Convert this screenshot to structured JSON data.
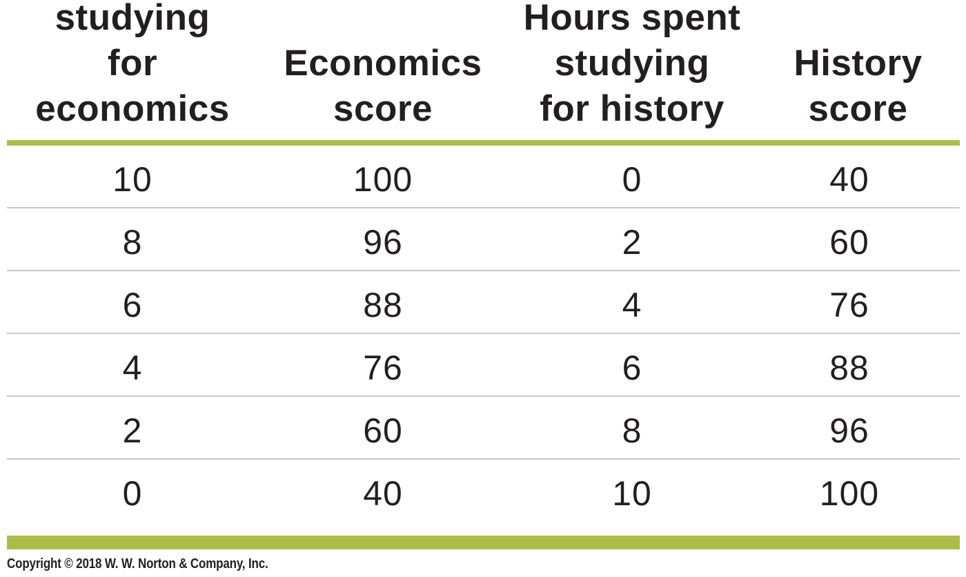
{
  "table": {
    "headers": [
      "Hours spent\nstudying\nfor economics",
      "Economics\nscore",
      "Hours spent\nstudying\nfor history",
      "History\nscore"
    ],
    "rows": [
      [
        "10",
        "100",
        "0",
        "40"
      ],
      [
        "8",
        "96",
        "2",
        "60"
      ],
      [
        "6",
        "88",
        "4",
        "76"
      ],
      [
        "4",
        "76",
        "6",
        "88"
      ],
      [
        "2",
        "60",
        "8",
        "96"
      ],
      [
        "0",
        "40",
        "10",
        "100"
      ]
    ]
  },
  "colors": {
    "rule_green": "#aebc4a",
    "row_divider": "#c8c8c8",
    "text": "#231f20"
  },
  "footer": {
    "copyright": "Copyright © 2018 W. W. Norton & Company, Inc."
  }
}
